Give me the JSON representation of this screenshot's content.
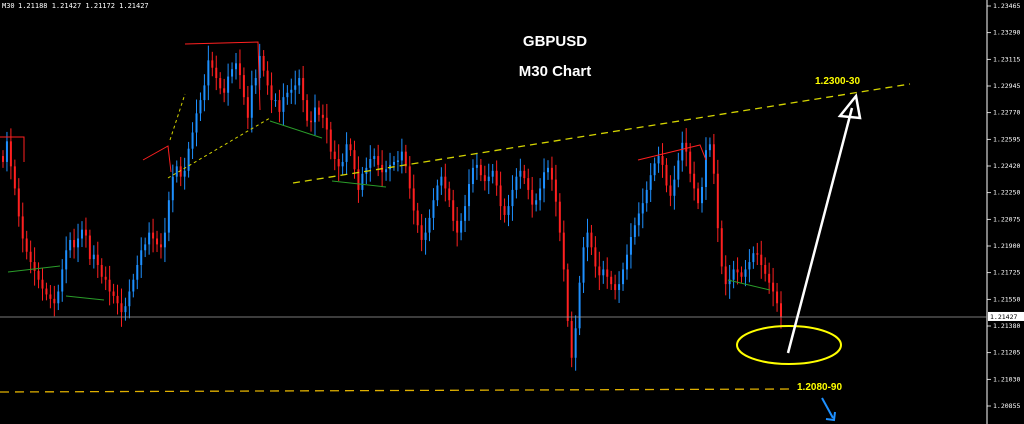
{
  "header": {
    "symbol_timeframe": "M30",
    "ohlc": "1.21188 1.21427 1.21172 1.21427"
  },
  "chart_data": {
    "type": "candlestick",
    "symbol": "GBPUSD",
    "title": "GBPUSD",
    "subtitle": "M30 Chart",
    "bull_color": "#1e90ff",
    "bear_color": "#ff2020",
    "price_axis": {
      "labels": [
        "1.23465",
        "1.23290",
        "1.23115",
        "1.22945",
        "1.22770",
        "1.22595",
        "1.22420",
        "1.22250",
        "1.22075",
        "1.21900",
        "1.21725",
        "1.21550",
        "1.21380",
        "1.21205",
        "1.21030",
        "1.20855"
      ],
      "ylim": [
        1.207,
        1.2358
      ]
    },
    "current_price": {
      "value": 1.21427,
      "label": "1.21427"
    },
    "closes": [
      1.2248,
      1.2262,
      1.2245,
      1.223,
      1.2211,
      1.2196,
      1.2187,
      1.218,
      1.2174,
      1.2168,
      1.2162,
      1.2158,
      1.2155,
      1.2152,
      1.216,
      1.2175,
      1.2188,
      1.2195,
      1.219,
      1.2196,
      1.2202,
      1.2198,
      1.2182,
      1.2185,
      1.2178,
      1.217,
      1.2168,
      1.216,
      1.2157,
      1.2152,
      1.2146,
      1.215,
      1.216,
      1.2168,
      1.2178,
      1.2188,
      1.2192,
      1.22,
      1.2196,
      1.2192,
      1.219,
      1.22,
      1.2222,
      1.2238,
      1.2245,
      1.2238,
      1.2242,
      1.2257,
      1.2268,
      1.2281,
      1.229,
      1.23,
      1.2317,
      1.2312,
      1.2305,
      1.2298,
      1.2295,
      1.2306,
      1.2311,
      1.2315,
      1.2307,
      1.2292,
      1.2278,
      1.23,
      1.2305,
      1.232,
      1.231,
      1.23,
      1.229,
      1.229,
      1.2282,
      1.2292,
      1.2295,
      1.2297,
      1.23,
      1.2305,
      1.229,
      1.2276,
      1.2275,
      1.2285,
      1.228,
      1.2278,
      1.227,
      1.2255,
      1.225,
      1.2245,
      1.2248,
      1.226,
      1.2256,
      1.2243,
      1.2229,
      1.224,
      1.2244,
      1.225,
      1.2252,
      1.2246,
      1.2241,
      1.2243,
      1.2246,
      1.2248,
      1.2249,
      1.2255,
      1.2245,
      1.223,
      1.2215,
      1.2205,
      1.2195,
      1.22,
      1.221,
      1.2222,
      1.2232,
      1.2238,
      1.223,
      1.2222,
      1.2208,
      1.22,
      1.2208,
      1.2218,
      1.2233,
      1.2244,
      1.2246,
      1.2239,
      1.2235,
      1.2238,
      1.2242,
      1.2232,
      1.2218,
      1.2212,
      1.2218,
      1.2229,
      1.2238,
      1.2242,
      1.2237,
      1.2229,
      1.2219,
      1.2222,
      1.223,
      1.2241,
      1.2244,
      1.2236,
      1.2221,
      1.22,
      1.2175,
      1.214,
      1.2115,
      1.2135,
      1.2166,
      1.219,
      1.22,
      1.219,
      1.2177,
      1.2171,
      1.2175,
      1.217,
      1.2165,
      1.2161,
      1.2165,
      1.2175,
      1.2185,
      1.2197,
      1.2205,
      1.2213,
      1.222,
      1.2229,
      1.2239,
      1.2247,
      1.2252,
      1.2246,
      1.2232,
      1.2225,
      1.2236,
      1.2249,
      1.2261,
      1.2255,
      1.224,
      1.223,
      1.222,
      1.2231,
      1.2256,
      1.226,
      1.224,
      1.2203,
      1.2177,
      1.2165,
      1.2168,
      1.2175,
      1.2173,
      1.217,
      1.2175,
      1.218,
      1.2186,
      1.2185,
      1.2178,
      1.2172,
      1.2166,
      1.216,
      1.2152,
      1.2143
    ],
    "annotations": [
      {
        "text": "1.2300-30",
        "price": 1.2293,
        "color": "#ffff00"
      },
      {
        "text": "1.2080-90",
        "price": 1.2086,
        "color": "#ffff00"
      }
    ],
    "trendlines": [
      {
        "name": "upper-channel",
        "style": "dashed",
        "color": "#d4d400",
        "from_price": 1.223,
        "to_price": 1.23
      },
      {
        "name": "support-level",
        "style": "dashed",
        "color": "#e0b000",
        "price": 1.2086
      }
    ],
    "grid": false
  }
}
